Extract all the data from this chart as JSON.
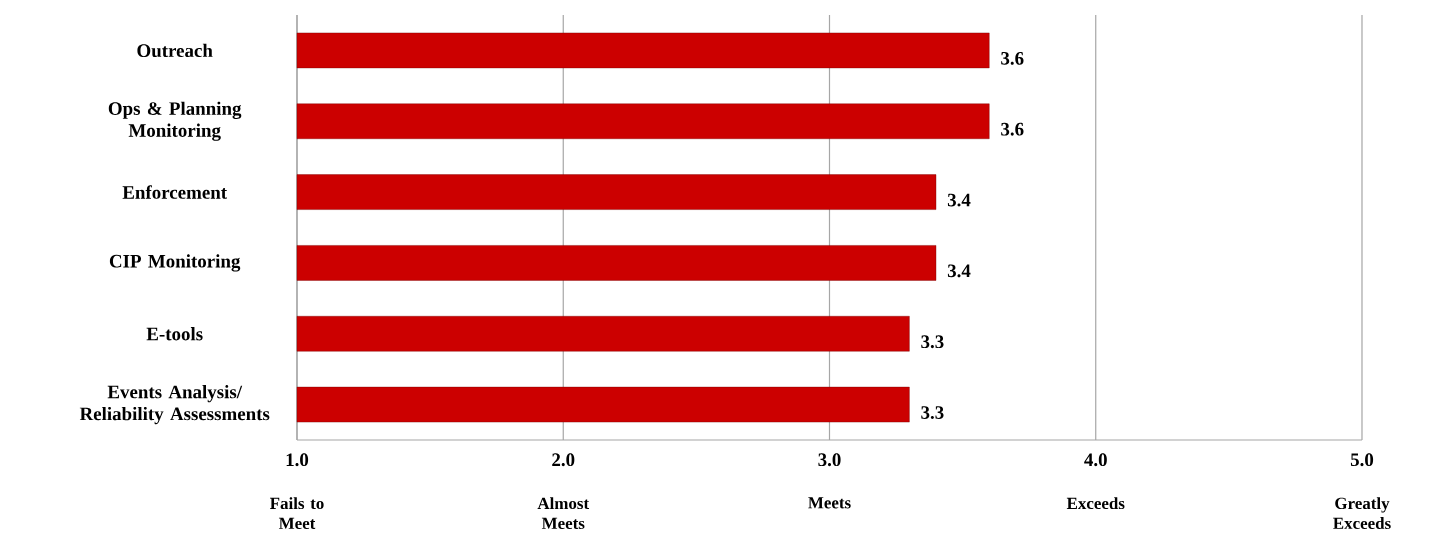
{
  "chart_data": {
    "type": "bar",
    "orientation": "horizontal",
    "categories": [
      "Outreach",
      "Ops & Planning Monitoring",
      "Enforcement",
      "CIP Monitoring",
      "E-tools",
      "Events Analysis/ Reliability Assessments"
    ],
    "values": [
      3.6,
      3.6,
      3.4,
      3.4,
      3.3,
      3.3
    ],
    "value_labels": [
      "3.6",
      "3.6",
      "3.4",
      "3.4",
      "3.3",
      "3.3"
    ],
    "color": "#cc0000",
    "xlim": [
      1,
      5
    ],
    "xticks": [
      {
        "value": 1,
        "label": "1.0"
      },
      {
        "value": 2,
        "label": "2.0"
      },
      {
        "value": 3,
        "label": "3.0"
      },
      {
        "value": 4,
        "label": "4.0"
      },
      {
        "value": 5,
        "label": "5.0"
      }
    ],
    "grid": "x",
    "annotations": [
      "Fails to Meet",
      "Almost Meets",
      "Meets",
      "Exceeds",
      "Greatly Exceeds"
    ]
  }
}
